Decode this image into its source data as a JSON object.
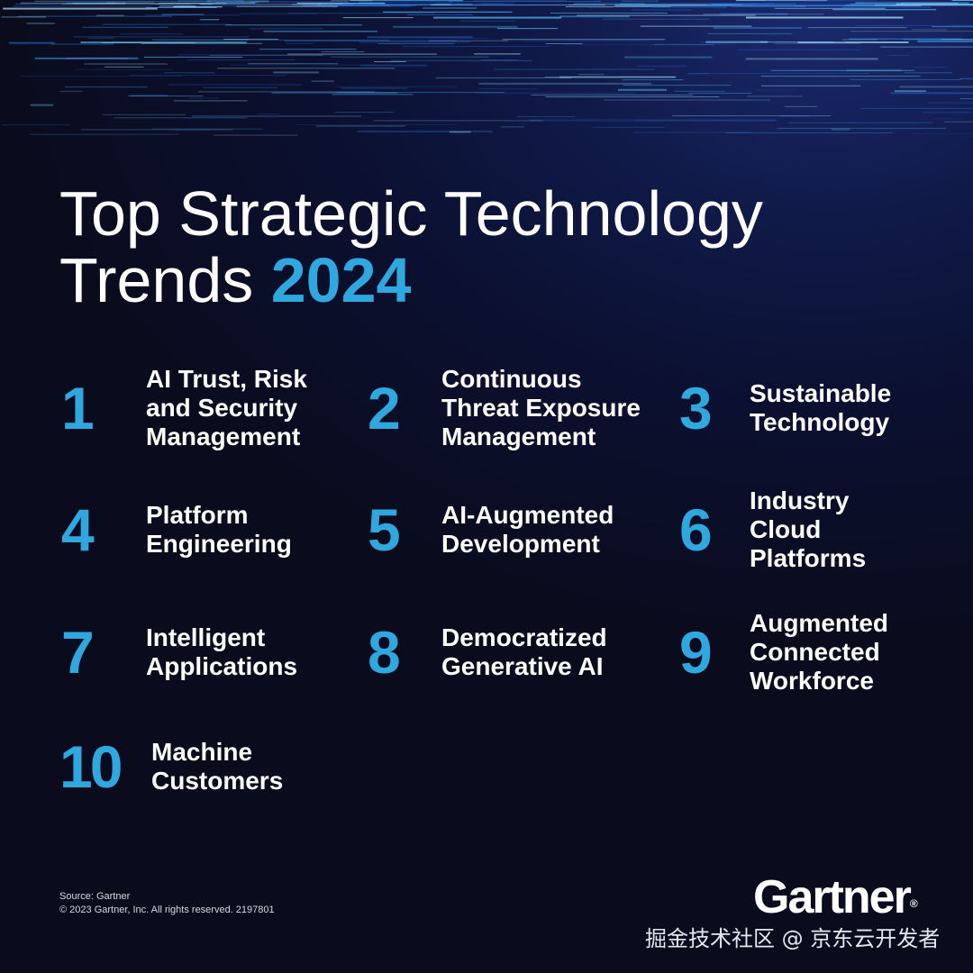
{
  "title": {
    "line1": "Top Strategic Technology",
    "line2_prefix": "Trends ",
    "year": "2024"
  },
  "trends": [
    {
      "number": "1",
      "label": "AI Trust, Risk\nand Security\nManagement"
    },
    {
      "number": "2",
      "label": "Continuous\nThreat Exposure\nManagement"
    },
    {
      "number": "3",
      "label": "Sustainable\nTechnology"
    },
    {
      "number": "4",
      "label": "Platform\nEngineering"
    },
    {
      "number": "5",
      "label": "AI-Augmented\nDevelopment"
    },
    {
      "number": "6",
      "label": "Industry\nCloud\nPlatforms"
    },
    {
      "number": "7",
      "label": "Intelligent\nApplications"
    },
    {
      "number": "8",
      "label": "Democratized\nGenerative AI"
    },
    {
      "number": "9",
      "label": "Augmented\nConnected\nWorkforce"
    },
    {
      "number": "10",
      "label": "Machine\nCustomers"
    }
  ],
  "footer": {
    "source": "Source: Gartner",
    "copyright": "© 2023 Gartner, Inc. All rights reserved. 2197801"
  },
  "logo": {
    "text": "Gartner",
    "registered": "®"
  },
  "watermark": "掘金技术社区 @ 京东云开发者",
  "colors": {
    "accent": "#2fa8e0",
    "background": "#0b1030",
    "text": "#ffffff"
  }
}
